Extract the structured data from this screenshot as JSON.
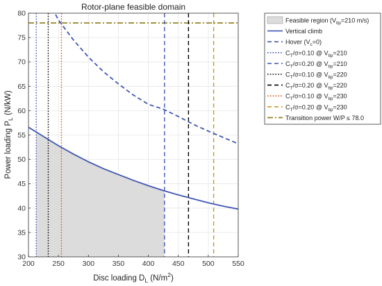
{
  "chart_data": {
    "type": "line",
    "title": "Rotor-plane feasible domain",
    "xlabel": {
      "main": "Disc loading  D",
      "sub": "L",
      "rest": "  (N/m",
      "sup": "2",
      "end": ")"
    },
    "ylabel": {
      "main": "Power loading  P",
      "sub": "L",
      "rest": "  (N/kW)"
    },
    "xlim": [
      200,
      550
    ],
    "ylim": [
      30,
      80
    ],
    "xticks": [
      200,
      250,
      300,
      350,
      400,
      450,
      500,
      550
    ],
    "yticks": [
      30,
      35,
      40,
      45,
      50,
      55,
      60,
      65,
      70,
      75,
      80
    ],
    "grid": true,
    "legend_placement": "outside-right",
    "feasible_region": {
      "color": "#dcdcdc",
      "x_left": 213,
      "x_right": 427,
      "lower_y": 30,
      "upper_series": "Vertical climb"
    },
    "series": [
      {
        "name": "Vertical climb",
        "style": "solid",
        "color": "#3f56b5",
        "x": [
          200,
          225,
          250,
          275,
          300,
          325,
          350,
          375,
          400,
          425,
          450,
          475,
          500,
          525,
          550
        ],
        "y": [
          56.6,
          54.7,
          52.8,
          51.1,
          49.5,
          48.1,
          46.9,
          45.7,
          44.6,
          43.6,
          42.7,
          41.9,
          41.1,
          40.4,
          39.8
        ]
      },
      {
        "name": "Hover",
        "style": "dashed",
        "color": "#3f56b5",
        "x": [
          240,
          250,
          275,
          300,
          325,
          350,
          375,
          400,
          425,
          450,
          475,
          500,
          525,
          550
        ],
        "y": [
          81.0,
          78.6,
          74.5,
          71.0,
          68.0,
          65.5,
          63.2,
          61.3,
          60.3,
          58.8,
          57.2,
          55.8,
          54.5,
          53.2
        ]
      }
    ],
    "vlines": [
      {
        "name": "CT/σ=0.10 @ Vtip=210",
        "x": 213,
        "style": "dotted",
        "color": "#3f56b5"
      },
      {
        "name": "CT/σ=0.20 @ Vtip=210",
        "x": 427,
        "style": "dashed",
        "color": "#3f56b5"
      },
      {
        "name": "CT/σ=0.10 @ Vtip=220",
        "x": 233,
        "style": "dotted",
        "color": "#000000"
      },
      {
        "name": "CT/σ=0.20 @ Vtip=220",
        "x": 467,
        "style": "dashed",
        "color": "#000000"
      },
      {
        "name": "CT/σ=0.10 @ Vtip=230",
        "x": 255,
        "style": "dotted",
        "color": "#d9541a"
      },
      {
        "name": "CT/σ=0.20 @ Vtip=230",
        "x": 509,
        "style": "dashed",
        "color": "#c59a2a"
      }
    ],
    "hlines": [
      {
        "name": "Transition power",
        "y": 78.0,
        "style": "dashdot",
        "color": "#8c7a14"
      }
    ]
  },
  "legend": {
    "items": [
      {
        "kind": "patch",
        "color": "#dcdcdc",
        "parts": [
          {
            "t": "Feasible region (V"
          },
          {
            "t": "tip",
            "sub": true
          },
          {
            "t": "=210 m/s)"
          }
        ]
      },
      {
        "kind": "line",
        "style": "solid",
        "color": "#3f56b5",
        "parts": [
          {
            "t": "Vertical climb"
          }
        ]
      },
      {
        "kind": "line",
        "style": "dashed",
        "color": "#3f56b5",
        "parts": [
          {
            "t": "Hover (V"
          },
          {
            "t": "c",
            "sub": true
          },
          {
            "t": "=0)"
          }
        ]
      },
      {
        "kind": "line",
        "style": "dotted",
        "color": "#3f56b5",
        "parts": [
          {
            "t": "C"
          },
          {
            "t": "T",
            "sub": true
          },
          {
            "t": "/σ=0.10 @ V"
          },
          {
            "t": "tip",
            "sub": true
          },
          {
            "t": "=210"
          }
        ]
      },
      {
        "kind": "line",
        "style": "dashed",
        "color": "#3f56b5",
        "parts": [
          {
            "t": "C"
          },
          {
            "t": "T",
            "sub": true
          },
          {
            "t": "/σ=0.20 @ V"
          },
          {
            "t": "tip",
            "sub": true
          },
          {
            "t": "=210"
          }
        ]
      },
      {
        "kind": "line",
        "style": "dotted",
        "color": "#000000",
        "parts": [
          {
            "t": "C"
          },
          {
            "t": "T",
            "sub": true
          },
          {
            "t": "/σ=0.10 @ V"
          },
          {
            "t": "tip",
            "sub": true
          },
          {
            "t": "=220"
          }
        ]
      },
      {
        "kind": "line",
        "style": "dashed",
        "color": "#000000",
        "parts": [
          {
            "t": "C"
          },
          {
            "t": "T",
            "sub": true
          },
          {
            "t": "/σ=0.20 @ V"
          },
          {
            "t": "tip",
            "sub": true
          },
          {
            "t": "=220"
          }
        ]
      },
      {
        "kind": "line",
        "style": "dotted",
        "color": "#d9541a",
        "parts": [
          {
            "t": "C"
          },
          {
            "t": "T",
            "sub": true
          },
          {
            "t": "/σ=0.10 @ V"
          },
          {
            "t": "tip",
            "sub": true
          },
          {
            "t": "=230"
          }
        ]
      },
      {
        "kind": "line",
        "style": "dashed",
        "color": "#c59a2a",
        "parts": [
          {
            "t": "C"
          },
          {
            "t": "T",
            "sub": true
          },
          {
            "t": "/σ=0.20 @ V"
          },
          {
            "t": "tip",
            "sub": true
          },
          {
            "t": "=230"
          }
        ]
      },
      {
        "kind": "line",
        "style": "dashdot",
        "color": "#8c7a14",
        "parts": [
          {
            "t": "Transition power  W/P  ≤ 78.0"
          }
        ]
      }
    ]
  }
}
